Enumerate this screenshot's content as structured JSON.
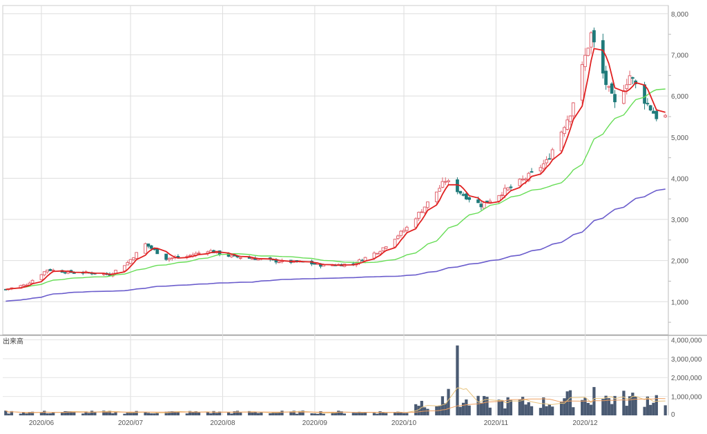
{
  "chart_data": [
    {
      "type": "candlestick",
      "panel": "price",
      "x_tick_labels": [
        "2020/06",
        "2020/07",
        "2020/08",
        "2020/09",
        "2020/10",
        "2020/11",
        "2020/12"
      ],
      "y_tick_labels": [
        "1,000",
        "2,000",
        "3,000",
        "4,000",
        "5,000",
        "6,000",
        "7,000",
        "8,000"
      ],
      "y_ticks": [
        1000,
        2000,
        3000,
        4000,
        5000,
        6000,
        7000,
        8000
      ],
      "ylim": [
        200,
        8200
      ],
      "grid": true,
      "colors": {
        "up": "#e0646e",
        "down": "#1f7a7a",
        "ma_short": "#e02020",
        "ma_mid": "#66dd55",
        "ma_long": "#6a5ccc",
        "grid": "#dddddd"
      },
      "anchors": [
        {
          "date": "2020-05-20",
          "close": 1300
        },
        {
          "date": "2020-05-27",
          "close": 1420
        },
        {
          "date": "2020-06-03",
          "close": 1780
        },
        {
          "date": "2020-06-10",
          "close": 1720
        },
        {
          "date": "2020-06-17",
          "close": 1700
        },
        {
          "date": "2020-06-24",
          "close": 1660
        },
        {
          "date": "2020-06-30",
          "close": 1950
        },
        {
          "date": "2020-07-06",
          "close": 2400
        },
        {
          "date": "2020-07-13",
          "close": 2050
        },
        {
          "date": "2020-07-20",
          "close": 2100
        },
        {
          "date": "2020-07-27",
          "close": 2250
        },
        {
          "date": "2020-08-04",
          "close": 2100
        },
        {
          "date": "2020-08-12",
          "close": 2050
        },
        {
          "date": "2020-08-20",
          "close": 1980
        },
        {
          "date": "2020-08-28",
          "close": 1960
        },
        {
          "date": "2020-09-04",
          "close": 1880
        },
        {
          "date": "2020-09-14",
          "close": 1920
        },
        {
          "date": "2020-09-23",
          "close": 2250
        },
        {
          "date": "2020-10-02",
          "close": 2800
        },
        {
          "date": "2020-10-09",
          "close": 3400
        },
        {
          "date": "2020-10-15",
          "close": 3950
        },
        {
          "date": "2020-10-21",
          "close": 3600
        },
        {
          "date": "2020-10-27",
          "close": 3350
        },
        {
          "date": "2020-11-04",
          "close": 3700
        },
        {
          "date": "2020-11-11",
          "close": 4000
        },
        {
          "date": "2020-11-18",
          "close": 4400
        },
        {
          "date": "2020-11-26",
          "close": 5600
        },
        {
          "date": "2020-12-03",
          "close": 7500
        },
        {
          "date": "2020-12-08",
          "close": 6300
        },
        {
          "date": "2020-12-11",
          "close": 5800
        },
        {
          "date": "2020-12-16",
          "close": 6500
        },
        {
          "date": "2020-12-21",
          "close": 5900
        },
        {
          "date": "2020-12-25",
          "close": 5500
        }
      ]
    },
    {
      "type": "bar",
      "panel": "volume",
      "title": "出来高",
      "y_tick_labels": [
        "0",
        "1,000,000",
        "2,000,000",
        "3,000,000",
        "4,000,000"
      ],
      "y_ticks": [
        0,
        1000000,
        2000000,
        3000000,
        4000000
      ],
      "ylim": [
        0,
        4200000
      ],
      "colors": {
        "bar": "#4a5a72",
        "avg_short": "#e8c27a",
        "avg_long": "#f0a060"
      },
      "notable_bars": [
        {
          "date": "2020-10-19",
          "value": 3700000
        },
        {
          "date": "2020-10-16",
          "value": 1400000
        },
        {
          "date": "2020-12-04",
          "value": 1500000
        }
      ]
    }
  ]
}
